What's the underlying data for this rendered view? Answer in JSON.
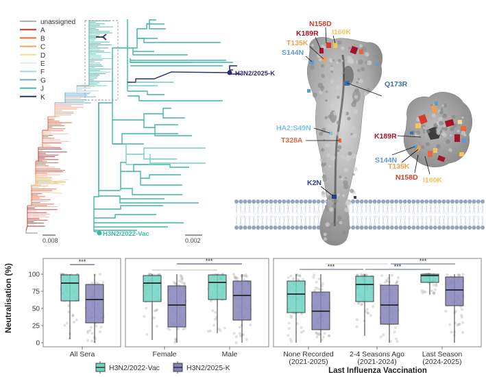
{
  "legend": {
    "items": [
      {
        "label": "unassigned",
        "color": "#b0b0b0"
      },
      {
        "label": "A",
        "color": "#c0302f"
      },
      {
        "label": "B",
        "color": "#e8613e"
      },
      {
        "label": "C",
        "color": "#f2a45a"
      },
      {
        "label": "D",
        "color": "#f9d98a"
      },
      {
        "label": "E",
        "color": "#dff0f6"
      },
      {
        "label": "F",
        "color": "#a9d4e8"
      },
      {
        "label": "G",
        "color": "#6fa6cf"
      },
      {
        "label": "J",
        "color": "#3fb6a8"
      },
      {
        "label": "K",
        "color": "#2f2a6b"
      }
    ]
  },
  "tree": {
    "scale_left": "0.008",
    "scale_right": "0.002",
    "tip_vac": "H3N2/2022-Vac",
    "tip_k": "H3N2/2025-K",
    "colors": {
      "j": "#3fb6a8",
      "j_light": "#6fd0c4",
      "k": "#2f2a6b"
    }
  },
  "structure": {
    "mutations_side": [
      {
        "label": "N158D",
        "color": "#d93a2b"
      },
      {
        "label": "I160K",
        "color": "#f3c55e"
      },
      {
        "label": "K189R",
        "color": "#a3142c"
      },
      {
        "label": "T135K",
        "color": "#f0a050"
      },
      {
        "label": "S144N",
        "color": "#5d9ccd"
      },
      {
        "label": "Q173R",
        "color": "#3d6fa8"
      },
      {
        "label": "HA2:S49N",
        "color": "#7ec1e3"
      },
      {
        "label": "T328A",
        "color": "#e8683a"
      },
      {
        "label": "K2N",
        "color": "#2b3f8f"
      }
    ],
    "mutations_top": [
      {
        "label": "K189R",
        "color": "#a3142c"
      },
      {
        "label": "S144N",
        "color": "#5d9ccd"
      },
      {
        "label": "T135K",
        "color": "#f0a050"
      },
      {
        "label": "N158D",
        "color": "#d93a2b"
      },
      {
        "label": "I160K",
        "color": "#f3c55e"
      }
    ]
  },
  "chart_data": [
    {
      "type": "box",
      "title": "",
      "ylabel": "Neutralisation (%)",
      "ylim": [
        0,
        100
      ],
      "yticks": [
        0,
        25,
        50,
        75,
        100
      ],
      "categories": [
        "All Sera"
      ],
      "series": [
        {
          "name": "H3N2/2022-Vac",
          "boxes": [
            {
              "min": 5,
              "q1": 61,
              "median": 87,
              "q3": 99,
              "max": 100
            }
          ]
        },
        {
          "name": "H3N2/2025-K",
          "boxes": [
            {
              "min": 0,
              "q1": 29,
              "median": 63,
              "q3": 85,
              "max": 100
            }
          ]
        }
      ],
      "significance": [
        {
          "label": "***",
          "from": "All Sera/H3N2/2022-Vac",
          "to": "All Sera/H3N2/2025-K"
        }
      ]
    },
    {
      "type": "box",
      "categories": [
        "Female",
        "Male"
      ],
      "ylim": [
        0,
        100
      ],
      "series": [
        {
          "name": "H3N2/2022-Vac",
          "boxes": [
            {
              "min": 4,
              "q1": 60,
              "median": 87,
              "q3": 98,
              "max": 100
            },
            {
              "min": 14,
              "q1": 63,
              "median": 88,
              "q3": 99,
              "max": 100
            }
          ]
        },
        {
          "name": "H3N2/2025-K",
          "boxes": [
            {
              "min": 0,
              "q1": 23,
              "median": 55,
              "q3": 83,
              "max": 100
            },
            {
              "min": 0,
              "q1": 33,
              "median": 69,
              "q3": 90,
              "max": 100
            }
          ]
        }
      ],
      "significance": [
        {
          "label": "",
          "from": "Female/H3N2/2022-Vac",
          "to": "Male/H3N2/2022-Vac"
        },
        {
          "label": "***",
          "from": "Female/H3N2/2025-K",
          "to": "Male/H3N2/2025-K"
        }
      ]
    },
    {
      "type": "box",
      "xlabel": "Last Influenza Vaccination",
      "categories": [
        "None Recorded\n(2021-2025)",
        "2-4 Seasons Ago\n(2021-2024)",
        "Last Season\n(2024-2025)"
      ],
      "ylim": [
        0,
        100
      ],
      "series": [
        {
          "name": "H3N2/2022-Vac",
          "boxes": [
            {
              "min": 0,
              "q1": 44,
              "median": 71,
              "q3": 90,
              "max": 100
            },
            {
              "min": 10,
              "q1": 60,
              "median": 85,
              "q3": 97,
              "max": 100
            },
            {
              "min": 70,
              "q1": 88,
              "median": 98,
              "q3": 100,
              "max": 100
            }
          ]
        },
        {
          "name": "H3N2/2025-K",
          "boxes": [
            {
              "min": 0,
              "q1": 19,
              "median": 46,
              "q3": 74,
              "max": 100
            },
            {
              "min": 0,
              "q1": 27,
              "median": 55,
              "q3": 84,
              "max": 100
            },
            {
              "min": 0,
              "q1": 54,
              "median": 77,
              "q3": 96,
              "max": 100
            }
          ]
        }
      ],
      "significance": [
        {
          "label": "***",
          "from": "None Recorded/H3N2/2022-Vac",
          "to": "2-4 Seasons Ago/H3N2/2022-Vac"
        },
        {
          "label": "***",
          "from": "2-4 Seasons Ago/H3N2/2022-Vac",
          "to": "Last Season/H3N2/2022-Vac"
        },
        {
          "label": "",
          "from": "None Recorded/H3N2/2025-K",
          "to": "2-4 Seasons Ago/H3N2/2025-K"
        },
        {
          "label": "***",
          "from": "2-4 Seasons Ago/H3N2/2025-K",
          "to": "Last Season/H3N2/2025-K"
        }
      ]
    }
  ],
  "box_legend": [
    {
      "label": "H3N2/2022-Vac",
      "color": "#6fd3c1"
    },
    {
      "label": "H3N2/2025-K",
      "color": "#8582b8"
    }
  ]
}
